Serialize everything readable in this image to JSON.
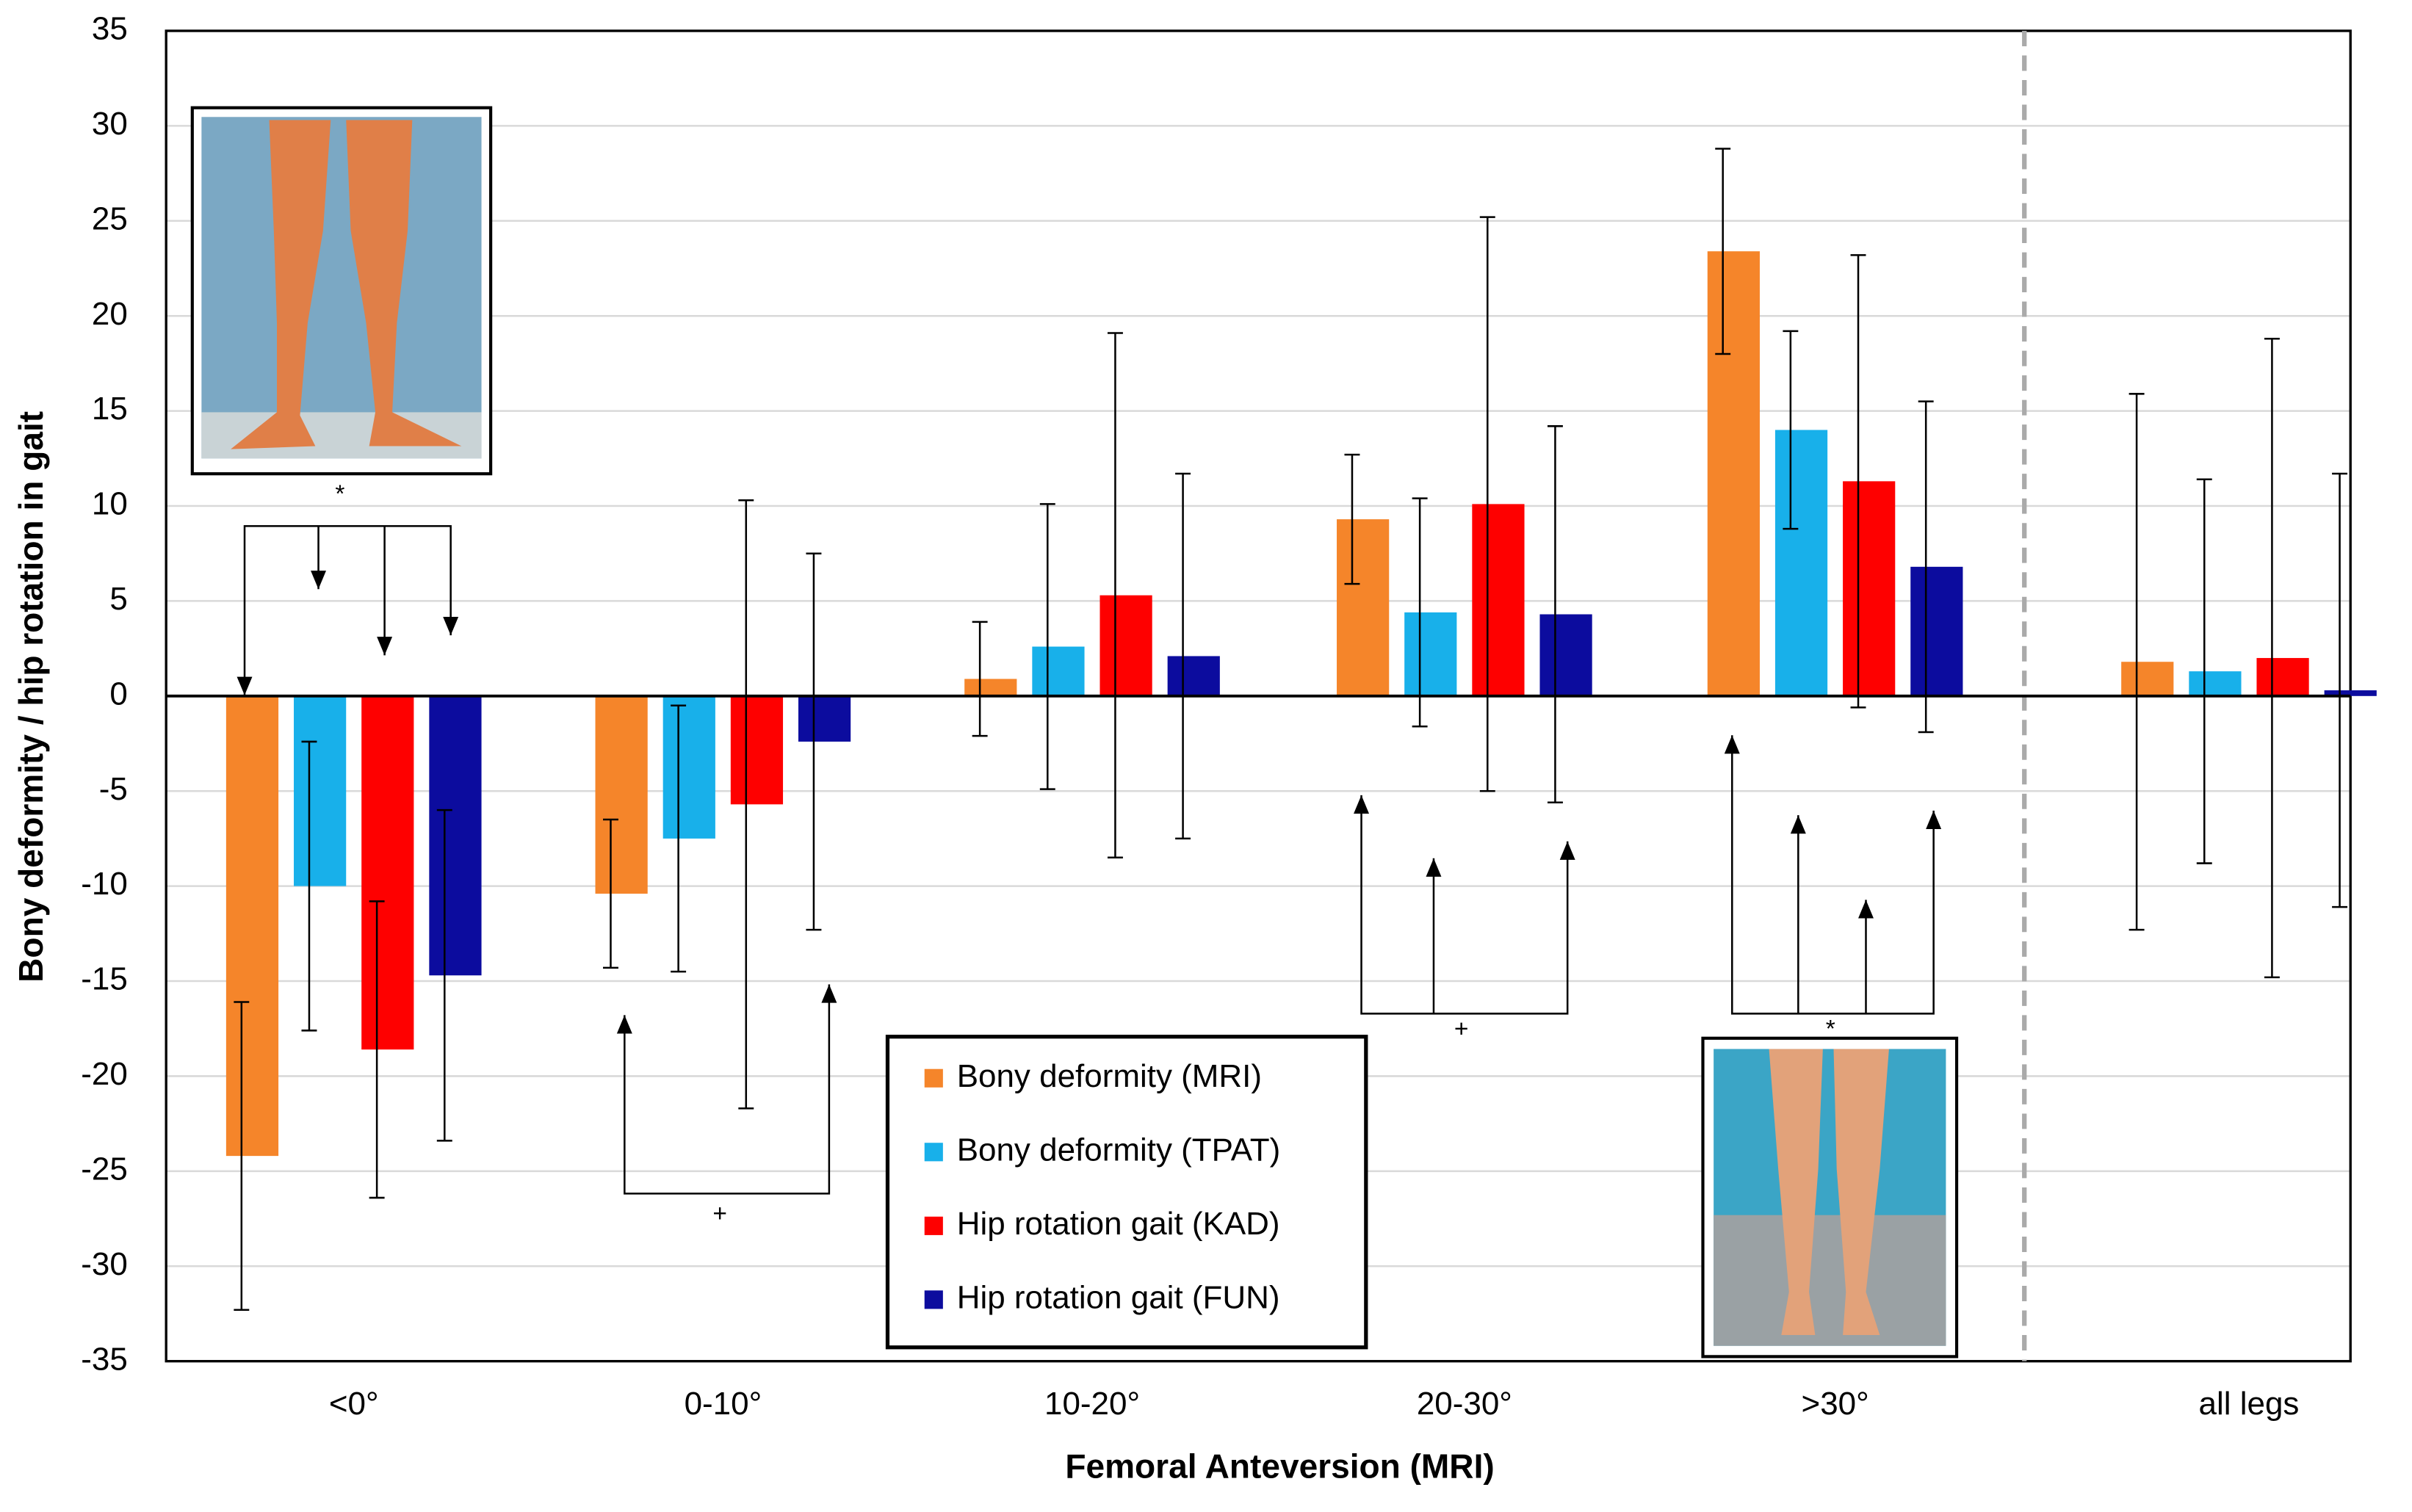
{
  "chart_data": {
    "type": "bar",
    "x_label": "Femoral Anteversion (MRI)",
    "y_label": "Bony deformity / hip rotation in gait",
    "categories": [
      "<0°",
      "0-10°",
      "10-20°",
      "20-30°",
      ">30°",
      "all legs"
    ],
    "series": [
      {
        "name": "Bony deformity (MRI)",
        "color": "#f5852a",
        "values": [
          -24.2,
          -10.4,
          0.9,
          9.3,
          23.4,
          1.8
        ],
        "errors": [
          8.1,
          3.9,
          3.0,
          3.4,
          5.4,
          14.1
        ]
      },
      {
        "name": "Bony deformity (TPAT)",
        "color": "#18b0ea",
        "values": [
          -10.0,
          -7.5,
          2.6,
          4.4,
          14.0,
          1.3
        ],
        "errors": [
          7.6,
          7.0,
          7.5,
          6.0,
          5.2,
          10.1
        ]
      },
      {
        "name": "Hip rotation gait (KAD)",
        "color": "#fe0000",
        "values": [
          -18.6,
          -5.7,
          5.3,
          10.1,
          11.3,
          2.0
        ],
        "errors": [
          7.8,
          16.0,
          13.8,
          15.1,
          11.9,
          16.8
        ]
      },
      {
        "name": "Hip rotation gait (FUN)",
        "color": "#0c0c9e",
        "values": [
          -14.7,
          -2.4,
          2.1,
          4.3,
          6.8,
          0.3
        ],
        "errors": [
          8.7,
          9.9,
          9.6,
          9.9,
          8.7,
          11.4
        ]
      }
    ],
    "ylim": [
      -35,
      35
    ],
    "yticks": [
      -35,
      -30,
      -25,
      -20,
      -15,
      -10,
      -5,
      0,
      5,
      10,
      15,
      20,
      25,
      30,
      35
    ],
    "grid": true,
    "annotations": [
      "*",
      "+",
      "+",
      "*"
    ]
  }
}
